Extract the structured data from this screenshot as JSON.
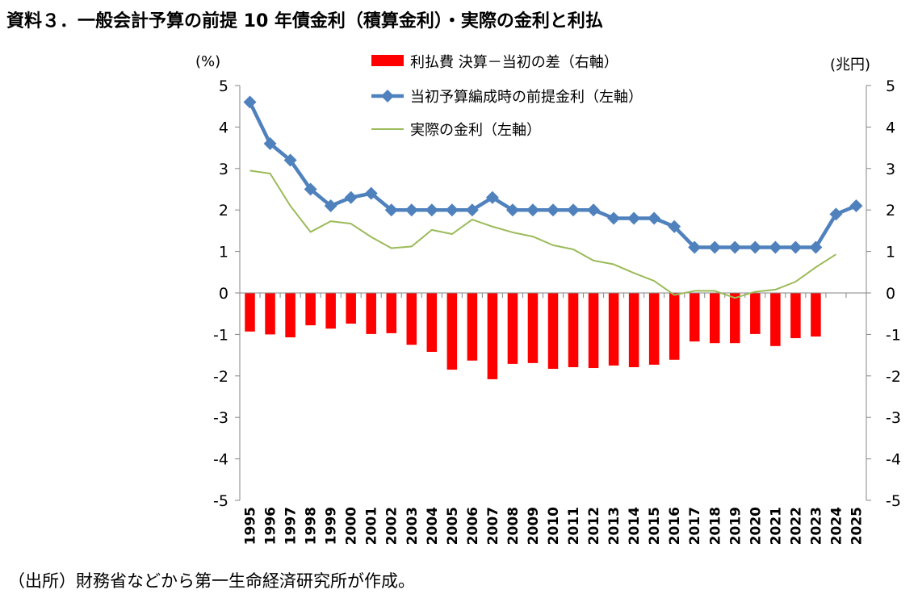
{
  "title": "資料３．一般会計予算の前提 10 年債金利（積算金利）・実際の金利と利払",
  "source": "（出所）財務省などから第一生命経済研究所が作成。",
  "chart_data": {
    "type": "bar+line",
    "categories": [
      "1995",
      "1996",
      "1997",
      "1998",
      "1999",
      "2000",
      "2001",
      "2002",
      "2003",
      "2004",
      "2005",
      "2006",
      "2007",
      "2008",
      "2009",
      "2010",
      "2011",
      "2012",
      "2013",
      "2014",
      "2015",
      "2016",
      "2017",
      "2018",
      "2019",
      "2020",
      "2021",
      "2022",
      "2023",
      "2024",
      "2025"
    ],
    "left_axis": {
      "unit": "(%)",
      "ylim": [
        -5,
        5
      ],
      "ticks": [
        "5",
        "4",
        "3",
        "2",
        "1",
        "0",
        "-1",
        "-2",
        "-3",
        "-4",
        "-5"
      ]
    },
    "right_axis": {
      "unit": "(兆円)",
      "ylim": [
        -5,
        5
      ],
      "ticks": [
        "5",
        "4",
        "3",
        "2",
        "1",
        "0",
        "-1",
        "-2",
        "-3",
        "-4",
        "-5"
      ]
    },
    "grid": false,
    "legend_position": "top",
    "series": [
      {
        "name": "利払費 決算－当初の差（右軸）",
        "type": "bar",
        "axis": "right",
        "color": "#ff0000",
        "values": [
          -0.93,
          -1.0,
          -1.07,
          -0.78,
          -0.86,
          -0.74,
          -0.99,
          -0.97,
          -1.25,
          -1.42,
          -1.85,
          -1.63,
          -2.08,
          -1.71,
          -1.69,
          -1.83,
          -1.79,
          -1.81,
          -1.75,
          -1.79,
          -1.73,
          -1.61,
          -1.17,
          -1.21,
          -1.21,
          -0.99,
          -1.28,
          -1.09,
          -1.05,
          null,
          null
        ]
      },
      {
        "name": "当初予算編成時の前提金利（左軸）",
        "type": "line",
        "axis": "left",
        "color": "#4f81bd",
        "marker": "diamond",
        "values": [
          4.6,
          3.6,
          3.2,
          2.5,
          2.1,
          2.3,
          2.4,
          2.0,
          2.0,
          2.0,
          2.0,
          2.0,
          2.3,
          2.0,
          2.0,
          2.0,
          2.0,
          2.0,
          1.8,
          1.8,
          1.8,
          1.6,
          1.1,
          1.1,
          1.1,
          1.1,
          1.1,
          1.1,
          1.1,
          1.9,
          2.1
        ]
      },
      {
        "name": "実際の金利（左軸）",
        "type": "line",
        "axis": "left",
        "color": "#9bbb59",
        "values": [
          2.95,
          2.88,
          2.1,
          1.47,
          1.73,
          1.67,
          1.35,
          1.08,
          1.12,
          1.52,
          1.42,
          1.77,
          1.6,
          1.46,
          1.36,
          1.15,
          1.05,
          0.78,
          0.69,
          0.48,
          0.29,
          -0.05,
          0.05,
          0.05,
          -0.12,
          0.03,
          0.08,
          0.27,
          0.62,
          0.93,
          null
        ]
      }
    ]
  }
}
